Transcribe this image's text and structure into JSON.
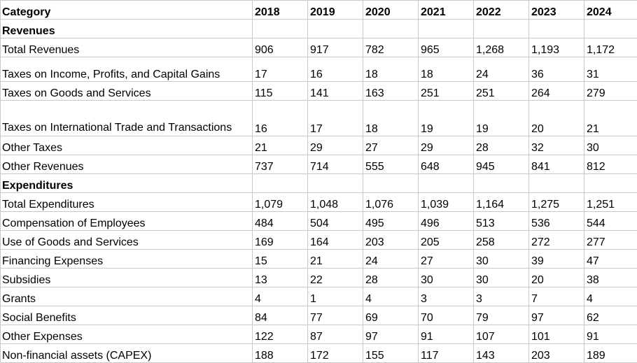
{
  "header": [
    "Category",
    "2018",
    "2019",
    "2020",
    "2021",
    "2022",
    "2023",
    "2024"
  ],
  "rows": [
    {
      "kind": "section",
      "label": "Revenues",
      "values": [
        "",
        "",
        "",
        "",
        "",
        "",
        ""
      ]
    },
    {
      "kind": "data",
      "label": "Total Revenues",
      "values": [
        "906",
        "917",
        "782",
        "965",
        "1,268",
        "1,193",
        "1,172"
      ]
    },
    {
      "kind": "tall",
      "label": "Taxes on Income, Profits, and Capital Gains",
      "values": [
        "17",
        "16",
        "18",
        "18",
        "24",
        "36",
        "31"
      ]
    },
    {
      "kind": "data",
      "label": "Taxes on Goods and Services",
      "values": [
        "115",
        "141",
        "163",
        "251",
        "251",
        "264",
        "279"
      ]
    },
    {
      "kind": "wrap",
      "label": "Taxes on International Trade and Transactions",
      "values": [
        "16",
        "17",
        "18",
        "19",
        "19",
        "20",
        "21"
      ]
    },
    {
      "kind": "data",
      "label": "Other Taxes",
      "values": [
        "21",
        "29",
        "27",
        "29",
        "28",
        "32",
        "30"
      ]
    },
    {
      "kind": "data",
      "label": "Other Revenues",
      "values": [
        "737",
        "714",
        "555",
        "648",
        "945",
        "841",
        "812"
      ]
    },
    {
      "kind": "section",
      "label": "Expenditures",
      "values": [
        "",
        "",
        "",
        "",
        "",
        "",
        ""
      ]
    },
    {
      "kind": "data",
      "label": "Total Expenditures",
      "values": [
        "1,079",
        "1,048",
        "1,076",
        "1,039",
        "1,164",
        "1,275",
        "1,251"
      ]
    },
    {
      "kind": "data",
      "label": "Compensation of Employees",
      "values": [
        "484",
        "504",
        "495",
        "496",
        "513",
        "536",
        "544"
      ]
    },
    {
      "kind": "data",
      "label": "Use of Goods and Services",
      "values": [
        "169",
        "164",
        "203",
        "205",
        "258",
        "272",
        "277"
      ]
    },
    {
      "kind": "data",
      "label": "Financing Expenses",
      "values": [
        "15",
        "21",
        "24",
        "27",
        "30",
        "39",
        "47"
      ]
    },
    {
      "kind": "data",
      "label": "Subsidies",
      "values": [
        "13",
        "22",
        "28",
        "30",
        "30",
        "20",
        "38"
      ]
    },
    {
      "kind": "data",
      "label": "Grants",
      "values": [
        "4",
        "1",
        "4",
        "3",
        "3",
        "7",
        "4"
      ]
    },
    {
      "kind": "data",
      "label": "Social Benefits",
      "values": [
        "84",
        "77",
        "69",
        "70",
        "79",
        "97",
        "62"
      ]
    },
    {
      "kind": "data",
      "label": "Other Expenses",
      "values": [
        "122",
        "87",
        "97",
        "91",
        "107",
        "101",
        "91"
      ]
    },
    {
      "kind": "data",
      "label": "Non-financial assets (CAPEX)",
      "values": [
        "188",
        "172",
        "155",
        "117",
        "143",
        "203",
        "189"
      ]
    }
  ]
}
